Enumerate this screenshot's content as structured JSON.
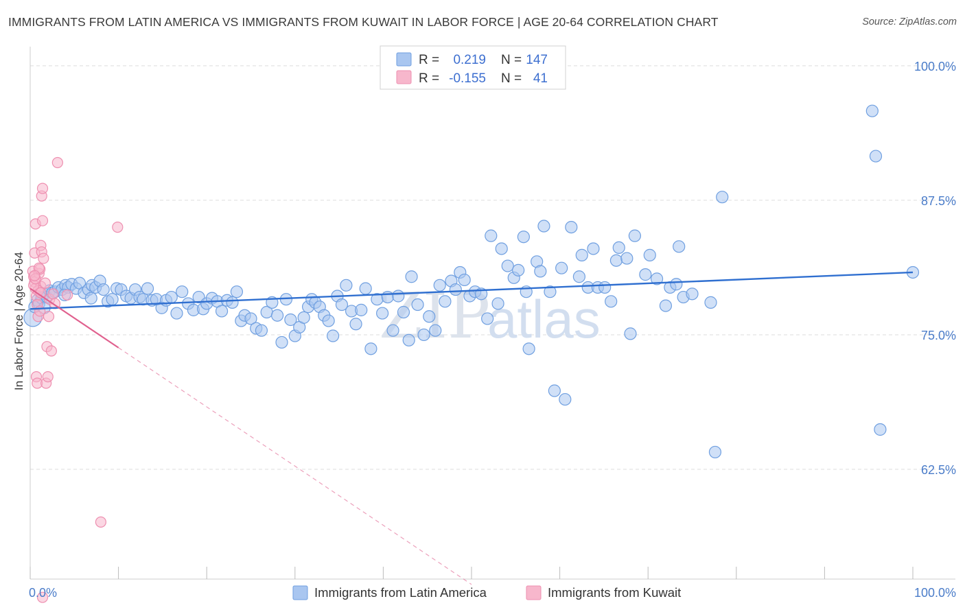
{
  "title": "IMMIGRANTS FROM LATIN AMERICA VS IMMIGRANTS FROM KUWAIT IN LABOR FORCE | AGE 20-64 CORRELATION CHART",
  "source": "Source: ZipAtlas.com",
  "watermark": {
    "zip": "ZIP",
    "atlas": "atlas"
  },
  "legend": {
    "rows": [
      {
        "r_label": "R =",
        "r_value": "0.219",
        "n_label": "N =",
        "n_value": "147"
      },
      {
        "r_label": "R =",
        "r_value": "-0.155",
        "n_label": "N =",
        "n_value": "41"
      }
    ]
  },
  "bottom_legend": [
    {
      "label": "Immigrants from Latin America"
    },
    {
      "label": "Immigrants from Kuwait"
    }
  ],
  "colors": {
    "blue_fill": "#a9c6f0",
    "blue_stroke": "#6f9fe0",
    "blue_line": "#2f6fd0",
    "pink_fill": "#f7b7cc",
    "pink_stroke": "#ee8fb0",
    "pink_line": "#e0608e",
    "grid": "#dedede",
    "tick_text": "#4a7cc9"
  },
  "chart_data": {
    "type": "scatter",
    "title": "IMMIGRANTS FROM LATIN AMERICA VS IMMIGRANTS FROM KUWAIT IN LABOR FORCE | AGE 20-64 CORRELATION CHART",
    "xlabel": "",
    "ylabel": "In Labor Force | Age 20-64",
    "xlim": [
      0,
      100
    ],
    "ylim": [
      52.3,
      101.2
    ],
    "x_tick_labels": [
      "0.0%",
      "100.0%"
    ],
    "y_ticks": [
      62.5,
      75.0,
      87.5,
      100.0
    ],
    "y_tick_labels": [
      "62.5%",
      "75.0%",
      "87.5%",
      "100.0%"
    ],
    "grid": true,
    "legend_position": "top-center",
    "series": [
      {
        "name": "Immigrants from Latin America",
        "color": "#a9c6f0",
        "trend": {
          "x": [
            0,
            100
          ],
          "y": [
            77.4,
            80.8
          ]
        },
        "points": [
          [
            0.3,
            76.6
          ],
          [
            0.5,
            77.6
          ],
          [
            0.8,
            78.2
          ],
          [
            1.0,
            77.9
          ],
          [
            1.3,
            78.4
          ],
          [
            1.6,
            78.8
          ],
          [
            1.9,
            78.5
          ],
          [
            2.2,
            79.1
          ],
          [
            2.5,
            78.9
          ],
          [
            2.8,
            79.0
          ],
          [
            3.2,
            79.4
          ],
          [
            3.6,
            79.2
          ],
          [
            4.0,
            79.6
          ],
          [
            4.3,
            79.4
          ],
          [
            4.7,
            79.7
          ],
          [
            5.2,
            79.3
          ],
          [
            5.6,
            79.8
          ],
          [
            6.1,
            78.9
          ],
          [
            6.6,
            79.2
          ],
          [
            7.0,
            79.6
          ],
          [
            7.4,
            79.4
          ],
          [
            7.9,
            80.0
          ],
          [
            8.3,
            79.2
          ],
          [
            8.8,
            78.1
          ],
          [
            9.3,
            78.3
          ],
          [
            9.8,
            79.3
          ],
          [
            10.3,
            79.2
          ],
          [
            10.9,
            78.6
          ],
          [
            11.4,
            78.4
          ],
          [
            11.9,
            79.2
          ],
          [
            12.4,
            78.5
          ],
          [
            12.8,
            78.3
          ],
          [
            13.3,
            79.3
          ],
          [
            13.8,
            78.2
          ],
          [
            14.3,
            78.3
          ],
          [
            14.9,
            77.5
          ],
          [
            15.4,
            78.2
          ],
          [
            16.0,
            78.5
          ],
          [
            16.6,
            77.0
          ],
          [
            17.2,
            79.0
          ],
          [
            17.9,
            77.9
          ],
          [
            18.5,
            77.3
          ],
          [
            19.1,
            78.5
          ],
          [
            19.6,
            77.4
          ],
          [
            20.0,
            77.9
          ],
          [
            20.6,
            78.4
          ],
          [
            21.2,
            78.1
          ],
          [
            21.7,
            77.2
          ],
          [
            22.3,
            78.2
          ],
          [
            22.9,
            78.0
          ],
          [
            23.4,
            79.0
          ],
          [
            23.9,
            76.3
          ],
          [
            24.3,
            76.8
          ],
          [
            25.0,
            76.5
          ],
          [
            25.6,
            75.6
          ],
          [
            26.2,
            75.4
          ],
          [
            26.8,
            77.1
          ],
          [
            27.4,
            78.0
          ],
          [
            28.0,
            76.8
          ],
          [
            28.5,
            74.3
          ],
          [
            29.0,
            78.3
          ],
          [
            29.5,
            76.4
          ],
          [
            30.0,
            74.9
          ],
          [
            30.5,
            75.7
          ],
          [
            31.0,
            76.6
          ],
          [
            31.5,
            77.6
          ],
          [
            31.9,
            78.3
          ],
          [
            32.3,
            78.0
          ],
          [
            32.8,
            77.6
          ],
          [
            33.3,
            76.8
          ],
          [
            33.8,
            76.3
          ],
          [
            34.3,
            74.9
          ],
          [
            34.8,
            78.6
          ],
          [
            35.3,
            77.8
          ],
          [
            35.8,
            79.6
          ],
          [
            36.4,
            77.2
          ],
          [
            36.9,
            76.0
          ],
          [
            37.5,
            77.3
          ],
          [
            38.0,
            79.3
          ],
          [
            38.6,
            73.7
          ],
          [
            39.3,
            78.3
          ],
          [
            39.9,
            77.0
          ],
          [
            40.5,
            78.5
          ],
          [
            41.1,
            75.4
          ],
          [
            41.7,
            78.6
          ],
          [
            42.3,
            77.1
          ],
          [
            42.9,
            74.5
          ],
          [
            43.2,
            80.4
          ],
          [
            43.9,
            77.8
          ],
          [
            44.6,
            75.0
          ],
          [
            45.2,
            76.7
          ],
          [
            45.9,
            75.4
          ],
          [
            46.4,
            79.6
          ],
          [
            47.0,
            78.1
          ],
          [
            47.7,
            80.0
          ],
          [
            48.2,
            79.2
          ],
          [
            48.7,
            80.8
          ],
          [
            49.2,
            80.1
          ],
          [
            49.8,
            78.6
          ],
          [
            50.4,
            79.0
          ],
          [
            51.1,
            78.8
          ],
          [
            51.8,
            76.5
          ],
          [
            52.2,
            84.2
          ],
          [
            53.0,
            77.9
          ],
          [
            53.4,
            83.0
          ],
          [
            54.1,
            81.4
          ],
          [
            54.8,
            80.3
          ],
          [
            55.3,
            81.0
          ],
          [
            55.9,
            84.1
          ],
          [
            56.2,
            79.0
          ],
          [
            56.5,
            73.7
          ],
          [
            57.4,
            81.8
          ],
          [
            57.8,
            80.9
          ],
          [
            58.2,
            85.1
          ],
          [
            58.9,
            79.0
          ],
          [
            59.4,
            69.8
          ],
          [
            60.2,
            81.2
          ],
          [
            60.6,
            69.0
          ],
          [
            61.3,
            85.0
          ],
          [
            62.2,
            80.4
          ],
          [
            62.5,
            82.4
          ],
          [
            63.2,
            79.4
          ],
          [
            63.8,
            83.0
          ],
          [
            64.3,
            79.4
          ],
          [
            65.1,
            79.4
          ],
          [
            65.8,
            78.1
          ],
          [
            66.7,
            83.1
          ],
          [
            66.4,
            81.9
          ],
          [
            67.6,
            82.1
          ],
          [
            68.0,
            75.1
          ],
          [
            68.5,
            84.2
          ],
          [
            69.7,
            80.6
          ],
          [
            70.2,
            82.4
          ],
          [
            71.0,
            80.2
          ],
          [
            72.0,
            77.7
          ],
          [
            72.5,
            79.4
          ],
          [
            73.2,
            79.7
          ],
          [
            73.5,
            83.2
          ],
          [
            74.0,
            78.5
          ],
          [
            75.0,
            78.8
          ],
          [
            77.1,
            78.0
          ],
          [
            77.6,
            64.1
          ],
          [
            78.4,
            87.8
          ],
          [
            95.8,
            91.6
          ],
          [
            95.4,
            95.8
          ],
          [
            96.3,
            66.2
          ],
          [
            100.0,
            80.8
          ],
          [
            1.6,
            77.5
          ],
          [
            3.9,
            78.7
          ],
          [
            6.9,
            78.4
          ]
        ]
      },
      {
        "name": "Immigrants from Kuwait",
        "color": "#f7b7cc",
        "trend": {
          "x": [
            0,
            50
          ],
          "y": [
            79.3,
            51.8
          ],
          "solid_until_x": 10.0
        },
        "points": [
          [
            0.3,
            80.9
          ],
          [
            0.4,
            80.4
          ],
          [
            0.5,
            79.9
          ],
          [
            0.6,
            79.3
          ],
          [
            0.7,
            78.6
          ],
          [
            0.8,
            77.8
          ],
          [
            0.9,
            76.7
          ],
          [
            1.0,
            80.7
          ],
          [
            1.1,
            81.1
          ],
          [
            1.2,
            79.5
          ],
          [
            0.5,
            82.6
          ],
          [
            0.6,
            85.3
          ],
          [
            0.7,
            71.1
          ],
          [
            0.8,
            70.5
          ],
          [
            0.9,
            79.1
          ],
          [
            1.1,
            77.2
          ],
          [
            1.2,
            83.3
          ],
          [
            1.3,
            82.7
          ],
          [
            1.4,
            85.6
          ],
          [
            1.5,
            82.1
          ],
          [
            1.3,
            87.9
          ],
          [
            1.4,
            88.6
          ],
          [
            1.7,
            79.8
          ],
          [
            1.8,
            70.5
          ],
          [
            1.9,
            73.9
          ],
          [
            2.0,
            71.1
          ],
          [
            2.1,
            76.7
          ],
          [
            2.2,
            78.3
          ],
          [
            2.4,
            73.5
          ],
          [
            2.6,
            78.8
          ],
          [
            2.8,
            77.9
          ],
          [
            3.1,
            91.0
          ],
          [
            4.2,
            78.7
          ],
          [
            0.4,
            79.6
          ],
          [
            0.6,
            80.2
          ],
          [
            1.0,
            81.2
          ],
          [
            1.2,
            78.9
          ],
          [
            9.9,
            85.0
          ],
          [
            8.0,
            57.6
          ],
          [
            1.4,
            50.6
          ],
          [
            0.5,
            80.5
          ]
        ]
      }
    ]
  }
}
